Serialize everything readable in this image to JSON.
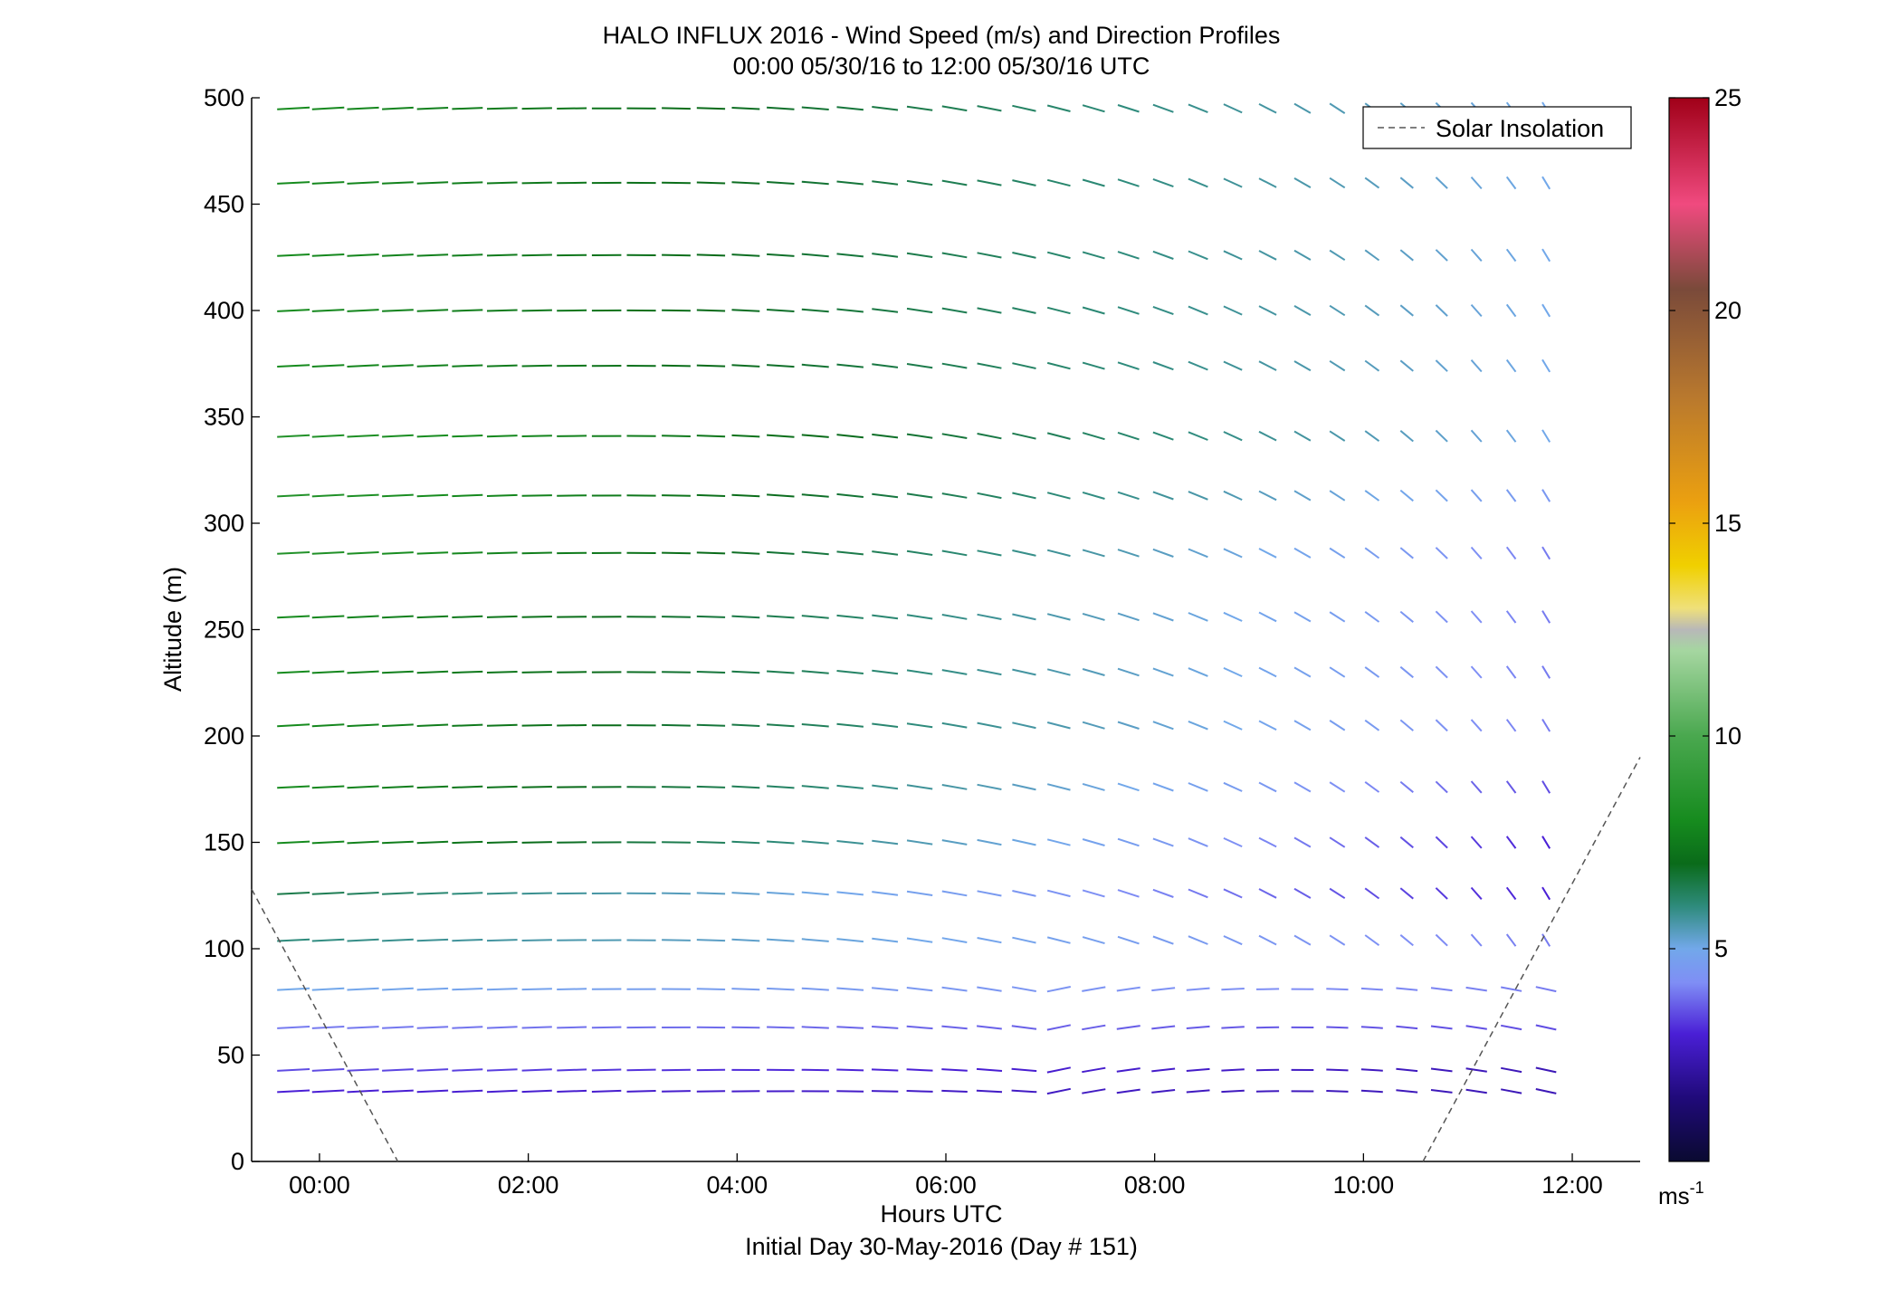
{
  "chart_data": {
    "type": "scatter",
    "title": "HALO INFLUX 2016 - Wind Speed (m/s) and Direction Profiles",
    "subtitle": "00:00 05/30/16 to 12:00 05/30/16  UTC",
    "xlabel": "Hours UTC",
    "xlabel2": "Initial Day 30-May-2016 (Day # 151)",
    "ylabel": "Altitude (m)",
    "xlim": [
      -0.65,
      12.65
    ],
    "ylim": [
      0,
      500
    ],
    "x_ticks": [
      0,
      2,
      4,
      6,
      8,
      10,
      12
    ],
    "x_tick_labels": [
      "00:00",
      "02:00",
      "04:00",
      "06:00",
      "08:00",
      "10:00",
      "12:00"
    ],
    "y_ticks": [
      0,
      50,
      100,
      150,
      200,
      250,
      300,
      350,
      400,
      450,
      500
    ],
    "y_tick_labels": [
      "0",
      "50",
      "100",
      "150",
      "200",
      "250",
      "300",
      "350",
      "400",
      "450",
      "500"
    ],
    "grid": false,
    "legend": {
      "position": "top-right",
      "entries": [
        {
          "label": "Solar Insolation",
          "style": "dashed",
          "color": "#555555"
        }
      ]
    },
    "colorbar": {
      "min": 0,
      "max": 25,
      "ticks": [
        5,
        10,
        15,
        20,
        25
      ],
      "tick_labels": [
        "5",
        "10",
        "15",
        "20",
        "25"
      ],
      "unit_label": "ms",
      "unit_exponent": "-1"
    },
    "time_range_hours": [
      -0.25,
      11.75
    ],
    "time_step_hours": 0.3333,
    "altitudes_m": [
      33,
      43,
      63,
      81,
      104,
      126,
      150,
      176,
      205,
      230,
      256,
      286,
      313,
      341,
      374,
      400,
      426,
      460,
      495
    ],
    "speed_description_ms": {
      "33": [
        3,
        2.5
      ],
      "43": [
        3.5,
        2.5
      ],
      "63": [
        4,
        3.5
      ],
      "81": [
        5,
        4
      ],
      "104": [
        6,
        4
      ],
      "126": [
        6.5,
        3
      ],
      "150": [
        8,
        3
      ],
      "176": [
        8,
        3.5
      ],
      "205": [
        8,
        4
      ],
      "230": [
        8,
        4
      ],
      "256": [
        8,
        4
      ],
      "286": [
        8.5,
        4
      ],
      "313": [
        8.5,
        4.5
      ],
      "341": [
        8.5,
        5
      ],
      "374": [
        8,
        5
      ],
      "400": [
        8,
        5
      ],
      "426": [
        8,
        5
      ],
      "460": [
        8,
        5
      ],
      "495": [
        8,
        5
      ]
    },
    "solar_insolation_line": [
      {
        "x": -0.65,
        "y": 128
      },
      {
        "x": 0.75,
        "y": 0
      },
      {
        "x": 10.57,
        "y": 0
      },
      {
        "x": 12.65,
        "y": 190
      }
    ],
    "colormap": [
      {
        "v": 0,
        "c": "#0a0a30"
      },
      {
        "v": 1.5,
        "c": "#200a7a"
      },
      {
        "v": 3,
        "c": "#4a1fd6"
      },
      {
        "v": 4.2,
        "c": "#7f8ef5"
      },
      {
        "v": 5,
        "c": "#72a8ea"
      },
      {
        "v": 6,
        "c": "#2e8b7c"
      },
      {
        "v": 7,
        "c": "#0a6b1a"
      },
      {
        "v": 8,
        "c": "#168b1e"
      },
      {
        "v": 10,
        "c": "#4aa84f"
      },
      {
        "v": 12,
        "c": "#a5d6a0"
      },
      {
        "v": 12.5,
        "c": "#b8b8b8"
      },
      {
        "v": 13,
        "c": "#efe07a"
      },
      {
        "v": 14,
        "c": "#f0d000"
      },
      {
        "v": 15.5,
        "c": "#eba010"
      },
      {
        "v": 18,
        "c": "#b8782e"
      },
      {
        "v": 20.5,
        "c": "#7a4a3a"
      },
      {
        "v": 22.5,
        "c": "#f04a7f"
      },
      {
        "v": 25,
        "c": "#a00018"
      }
    ]
  }
}
